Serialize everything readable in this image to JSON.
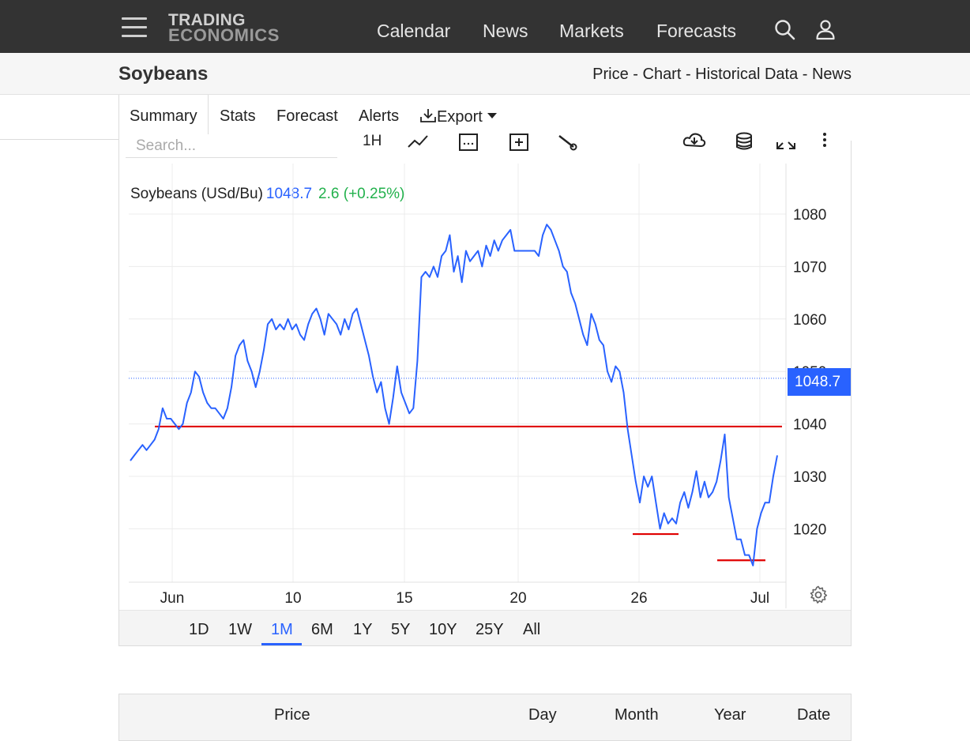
{
  "header": {
    "logo_line1": "TRADING",
    "logo_line2": "ECONOMICS",
    "nav": [
      "Calendar",
      "News",
      "Markets",
      "Forecasts"
    ],
    "icons": [
      "hamburger-icon",
      "search-icon",
      "user-icon"
    ]
  },
  "subheader": {
    "title": "Soybeans",
    "breadcrumb": "Price - Chart - Historical Data - News"
  },
  "tabs": {
    "summary": "Summary",
    "stats": "Stats",
    "forecast": "Forecast",
    "alerts": "Alerts",
    "export": "Export"
  },
  "toolbar": {
    "search_placeholder": "Search...",
    "interval_label": "1H"
  },
  "legend": {
    "name": "Soybeans (USd/Bu)",
    "price": "1048.7",
    "change": "2.6 (+0.25%)"
  },
  "chart_data": {
    "type": "line",
    "series": [
      {
        "name": "Soybeans (USd/Bu)",
        "color": "#2962ff",
        "x": [
          0,
          1,
          2,
          3,
          4,
          5,
          6,
          7,
          8,
          9,
          10,
          11,
          12,
          13,
          14,
          15,
          16,
          17,
          18,
          19,
          20,
          21,
          22,
          23,
          24,
          25,
          26,
          27,
          28,
          29,
          30,
          31,
          32,
          33,
          34,
          35,
          36,
          37,
          38,
          39,
          40,
          41,
          42,
          43,
          44,
          45,
          46,
          47,
          48,
          49,
          50,
          51,
          52,
          53,
          54,
          55,
          56,
          57,
          58,
          59,
          60,
          61,
          62,
          63,
          64,
          65,
          66,
          67,
          68,
          69,
          70,
          71,
          72,
          73,
          74,
          75,
          76,
          77,
          78,
          79,
          80,
          81,
          82,
          83,
          84,
          85,
          86,
          87,
          88,
          89,
          90,
          91,
          92,
          93,
          94,
          95,
          96,
          97,
          98,
          99,
          100,
          101,
          102,
          103,
          104,
          105,
          106,
          107,
          108,
          109,
          110,
          111,
          112,
          113,
          114,
          115,
          116,
          117,
          118,
          119,
          120,
          121,
          122,
          123,
          124,
          125,
          126,
          127,
          128,
          129,
          130,
          131,
          132,
          133,
          134,
          135,
          136,
          137,
          138,
          139,
          140,
          141,
          142,
          143,
          144,
          145,
          146,
          147,
          148,
          149,
          150,
          151,
          152,
          153,
          154,
          155,
          156,
          157,
          158,
          159,
          160
        ],
        "y": [
          1033,
          1034,
          1035,
          1036,
          1035,
          1036,
          1037,
          1039,
          1043,
          1041,
          1041,
          1040,
          1039,
          1040,
          1044,
          1046,
          1050,
          1049,
          1046,
          1044,
          1043,
          1043,
          1042,
          1041,
          1043,
          1047,
          1053,
          1055,
          1056,
          1052,
          1050,
          1047,
          1050,
          1054,
          1059,
          1060,
          1058,
          1059,
          1058,
          1060,
          1058,
          1059,
          1057,
          1056,
          1059,
          1061,
          1062,
          1060,
          1057,
          1061,
          1060,
          1059,
          1057,
          1060,
          1058,
          1061,
          1062,
          1059,
          1056,
          1053,
          1049,
          1046,
          1048,
          1043,
          1040,
          1045,
          1051,
          1046,
          1044,
          1042,
          1043,
          1052,
          1068,
          1069,
          1068,
          1070,
          1068,
          1072,
          1073,
          1076,
          1069,
          1072,
          1067,
          1073,
          1071,
          1072,
          1073,
          1070,
          1074,
          1072,
          1075,
          1073,
          1075,
          1076,
          1077,
          1073,
          1073,
          1073,
          1073,
          1073,
          1073,
          1072,
          1076,
          1078,
          1077,
          1075,
          1073,
          1070,
          1069,
          1065,
          1063,
          1060,
          1057,
          1055,
          1061,
          1059,
          1056,
          1055,
          1050,
          1048,
          1051,
          1050,
          1046,
          1039,
          1034,
          1029,
          1025,
          1030,
          1028,
          1030,
          1025,
          1020,
          1023,
          1021,
          1022,
          1021,
          1025,
          1027,
          1024,
          1027,
          1031,
          1026,
          1029,
          1026,
          1027,
          1029,
          1033,
          1038,
          1026,
          1022,
          1018,
          1018,
          1015,
          1015,
          1013,
          1020,
          1023,
          1025,
          1025,
          1030,
          1034
        ]
      }
    ],
    "x_tick_labels": [
      "Jun",
      "10",
      "15",
      "20",
      "26",
      "Jul"
    ],
    "y_tick_labels": [
      "1020",
      "1030",
      "1040",
      "1050",
      "1060",
      "1070",
      "1080"
    ],
    "ylim": [
      1012,
      1082
    ],
    "current_price_line": 1048.7,
    "current_price_label": "1048.7",
    "annotations": [
      {
        "type": "horizontal-line",
        "color": "#e00000",
        "y": 1039.5
      },
      {
        "type": "horizontal-line",
        "color": "#e00000",
        "y": 1019
      },
      {
        "type": "horizontal-line",
        "color": "#e00000",
        "y": 1014
      }
    ],
    "grid": true
  },
  "ranges": [
    "1D",
    "1W",
    "1M",
    "6M",
    "1Y",
    "5Y",
    "10Y",
    "25Y",
    "All"
  ],
  "active_range": "1M",
  "table": {
    "headers": [
      "Price",
      "Day",
      "Month",
      "Year",
      "Date"
    ]
  }
}
